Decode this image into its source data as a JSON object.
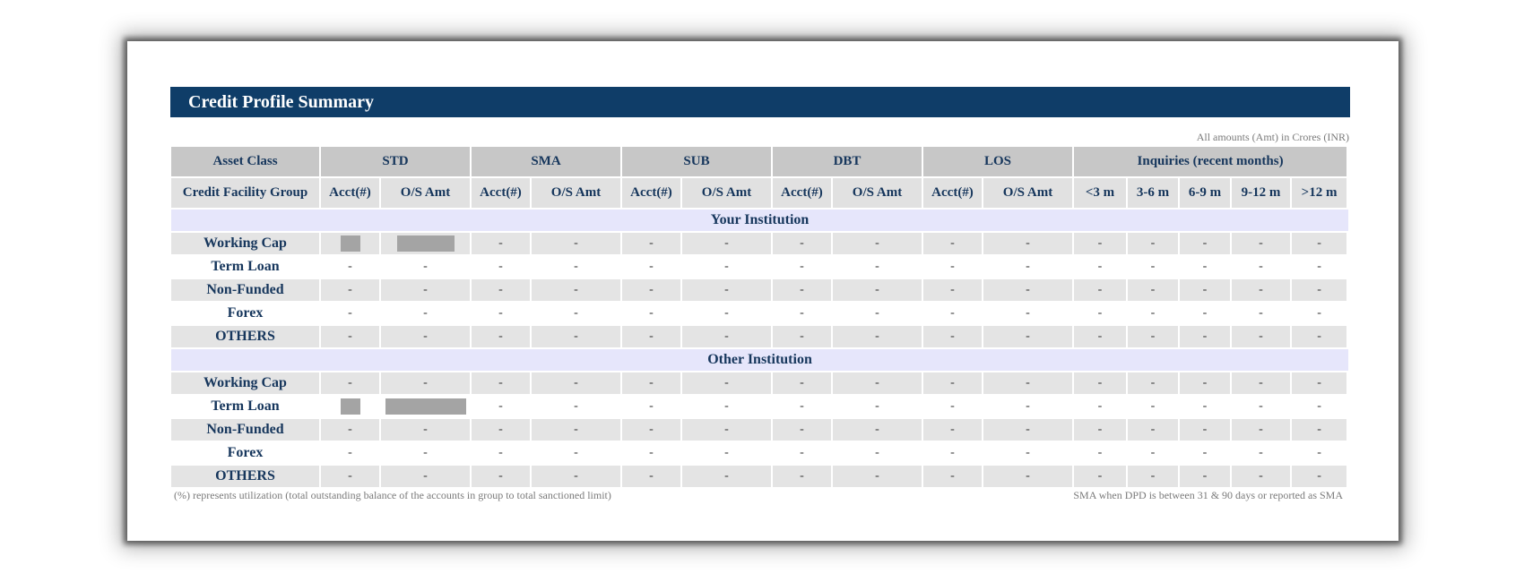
{
  "report": {
    "title": "Credit Profile Summary",
    "amount_note": "All amounts (Amt) in Crores (INR)",
    "header_groups": [
      "Asset Class",
      "STD",
      "SMA",
      "SUB",
      "DBT",
      "LOS",
      "Inquiries (recent months)"
    ],
    "sub_headers": [
      "Credit Facility Group",
      "Acct(#)",
      "O/S Amt",
      "Acct(#)",
      "O/S Amt",
      "Acct(#)",
      "O/S Amt",
      "Acct(#)",
      "O/S Amt",
      "Acct(#)",
      "O/S Amt",
      "<3 m",
      "3-6 m",
      "6-9 m",
      "9-12 m",
      ">12 m"
    ],
    "sections": [
      {
        "name": "Your Institution",
        "rows": [
          {
            "label": "Working Cap",
            "values": [
              "[redacted]",
              "[redacted]",
              "-",
              "-",
              "-",
              "-",
              "-",
              "-",
              "-",
              "-",
              "-",
              "-",
              "-",
              "-",
              "-"
            ]
          },
          {
            "label": "Term Loan",
            "values": [
              "-",
              "-",
              "-",
              "-",
              "-",
              "-",
              "-",
              "-",
              "-",
              "-",
              "-",
              "-",
              "-",
              "-",
              "-"
            ]
          },
          {
            "label": "Non-Funded",
            "values": [
              "-",
              "-",
              "-",
              "-",
              "-",
              "-",
              "-",
              "-",
              "-",
              "-",
              "-",
              "-",
              "-",
              "-",
              "-"
            ]
          },
          {
            "label": "Forex",
            "values": [
              "-",
              "-",
              "-",
              "-",
              "-",
              "-",
              "-",
              "-",
              "-",
              "-",
              "-",
              "-",
              "-",
              "-",
              "-"
            ]
          },
          {
            "label": "OTHERS",
            "values": [
              "-",
              "-",
              "-",
              "-",
              "-",
              "-",
              "-",
              "-",
              "-",
              "-",
              "-",
              "-",
              "-",
              "-",
              "-"
            ]
          }
        ]
      },
      {
        "name": "Other Institution",
        "rows": [
          {
            "label": "Working Cap",
            "values": [
              "-",
              "-",
              "-",
              "-",
              "-",
              "-",
              "-",
              "-",
              "-",
              "-",
              "-",
              "-",
              "-",
              "-",
              "-"
            ]
          },
          {
            "label": "Term Loan",
            "values": [
              "[redacted]",
              "[redacted]",
              "-",
              "-",
              "-",
              "-",
              "-",
              "-",
              "-",
              "-",
              "-",
              "-",
              "-",
              "-",
              "-"
            ]
          },
          {
            "label": "Non-Funded",
            "values": [
              "-",
              "-",
              "-",
              "-",
              "-",
              "-",
              "-",
              "-",
              "-",
              "-",
              "-",
              "-",
              "-",
              "-",
              "-"
            ]
          },
          {
            "label": "Forex",
            "values": [
              "-",
              "-",
              "-",
              "-",
              "-",
              "-",
              "-",
              "-",
              "-",
              "-",
              "-",
              "-",
              "-",
              "-",
              "-"
            ]
          },
          {
            "label": "OTHERS",
            "values": [
              "-",
              "-",
              "-",
              "-",
              "-",
              "-",
              "-",
              "-",
              "-",
              "-",
              "-",
              "-",
              "-",
              "-",
              "-"
            ]
          }
        ]
      }
    ],
    "footnote_left": "(%) represents utilization (total outstanding balance of the accounts in group to total sanctioned limit)",
    "footnote_right": "SMA when DPD is between 31 & 90 days or reported as SMA",
    "colors": {
      "title_bar": "#0f3d68",
      "header_text": "#16365c",
      "section_band": "#e6e6fb",
      "redaction": "#a4a4a4"
    }
  }
}
